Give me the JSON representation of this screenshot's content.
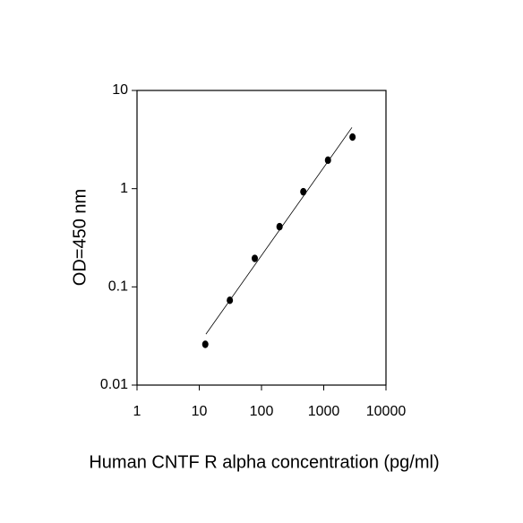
{
  "chart_data": {
    "type": "scatter",
    "x_label": "Human CNTF R alpha concentration (pg/ml)",
    "y_label": "OD=450 nm",
    "series": [
      {
        "color": "#000000",
        "x": [
          12.5,
          31,
          78,
          195,
          470,
          1170,
          2900
        ],
        "values": [
          0.026,
          0.073,
          0.195,
          0.41,
          0.93,
          1.95,
          3.35
        ]
      }
    ],
    "fit": {
      "color": "#000000",
      "x": [
        12.8,
        2840
      ],
      "values": [
        0.033,
        4.2
      ]
    },
    "xscale": "log",
    "yscale": "log",
    "xlim": [
      1,
      10000
    ],
    "ylim": [
      0.01,
      10
    ],
    "xticks": [
      1,
      10,
      100,
      1000,
      10000
    ],
    "yticks": [
      0.01,
      0.1,
      1,
      10
    ],
    "grid": false
  }
}
